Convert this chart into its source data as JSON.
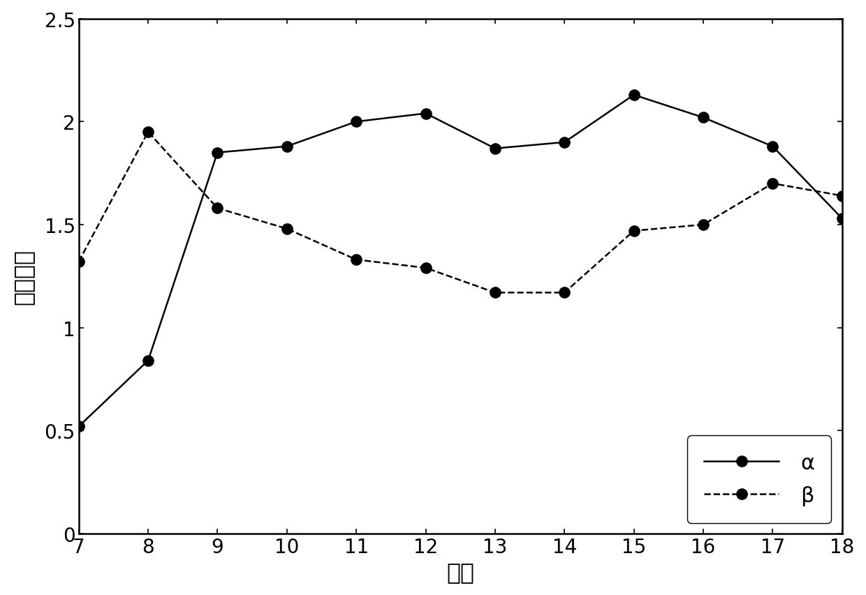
{
  "x": [
    7,
    8,
    9,
    10,
    11,
    12,
    13,
    14,
    15,
    16,
    17,
    18
  ],
  "alpha": [
    0.52,
    0.84,
    1.85,
    1.88,
    2.0,
    2.04,
    1.87,
    1.9,
    2.13,
    2.02,
    1.88,
    1.53
  ],
  "beta": [
    1.32,
    1.95,
    1.58,
    1.48,
    1.33,
    1.29,
    1.17,
    1.17,
    1.47,
    1.5,
    1.7,
    1.64
  ],
  "xlabel": "时刻",
  "ylabel": "形状参数",
  "xlim": [
    7,
    18
  ],
  "ylim": [
    0,
    2.5
  ],
  "ytick_labels": [
    "0",
    "0.5",
    "1",
    "1.5",
    "2",
    "2.5"
  ],
  "ytick_values": [
    0,
    0.5,
    1.0,
    1.5,
    2.0,
    2.5
  ],
  "xticks": [
    7,
    8,
    9,
    10,
    11,
    12,
    13,
    14,
    15,
    16,
    17,
    18
  ],
  "legend_alpha": "α",
  "legend_beta": "β",
  "line_color": "#000000",
  "marker_color": "#000000",
  "background_color": "#ffffff",
  "label_fontsize": 24,
  "tick_fontsize": 20,
  "legend_fontsize": 22,
  "marker_size": 11,
  "line_width": 1.8
}
